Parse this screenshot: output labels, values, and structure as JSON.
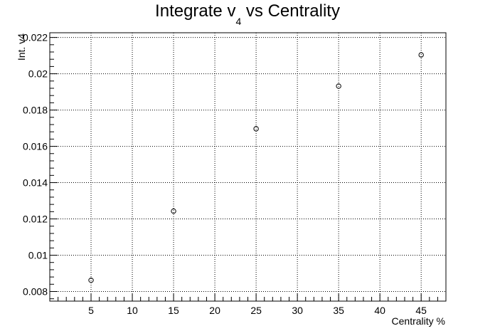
{
  "chart_data": {
    "type": "scatter",
    "title": {
      "prefix": "Integrate v",
      "subscript": "4",
      "suffix": " vs Centrality"
    },
    "xlabel": "Centrality %",
    "ylabel": "Int. v4",
    "x": [
      5,
      15,
      25,
      35,
      45
    ],
    "y": [
      0.00862,
      0.01243,
      0.01697,
      0.01932,
      0.02104
    ],
    "xlim": [
      0,
      48
    ],
    "ylim": [
      0.00747,
      0.02226
    ],
    "x_ticks": [
      5,
      10,
      15,
      20,
      25,
      30,
      35,
      40,
      45
    ],
    "x_tick_labels": [
      "5",
      "10",
      "15",
      "20",
      "25",
      "30",
      "35",
      "40",
      "45"
    ],
    "y_ticks": [
      0.008,
      0.01,
      0.012,
      0.014,
      0.016,
      0.018,
      0.02,
      0.022
    ],
    "y_tick_labels": [
      "0.008",
      "0.01",
      "0.012",
      "0.014",
      "0.016",
      "0.018",
      "0.02",
      "0.022"
    ],
    "grid": true,
    "marker": "open-circle",
    "colors": {
      "marker": "#000000",
      "grid": "#000000",
      "frame": "#000000"
    }
  }
}
